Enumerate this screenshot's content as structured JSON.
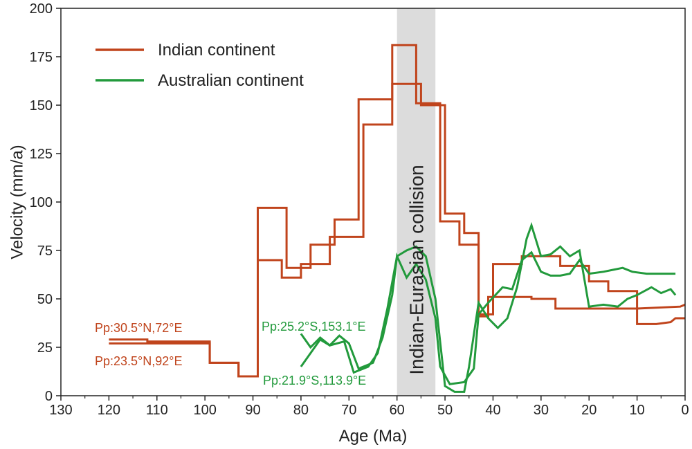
{
  "chart_data": {
    "type": "line",
    "title": "",
    "xlabel": "Age (Ma)",
    "ylabel": "Velocity (mm/a)",
    "xlim": [
      130,
      0
    ],
    "ylim": [
      0,
      200
    ],
    "x_ticks": [
      130,
      120,
      110,
      100,
      90,
      80,
      70,
      60,
      50,
      40,
      30,
      20,
      10,
      0
    ],
    "y_ticks": [
      0,
      25,
      50,
      75,
      100,
      125,
      150,
      175,
      200
    ],
    "legend_position": "top-left",
    "legend": [
      {
        "label": "Indian continent",
        "color": "#c0441c"
      },
      {
        "label": "Australian continent",
        "color": "#229a3c"
      }
    ],
    "band": {
      "x0": 60,
      "x1": 52,
      "label": "Indian-Eurasian collision",
      "color": "#dcdcdc"
    },
    "series": [
      {
        "group": "Indian continent",
        "color": "#c0441c",
        "annotation": "Pp:30.5°N,72°E",
        "points": [
          [
            120,
            29
          ],
          [
            112,
            29
          ],
          [
            112,
            28
          ],
          [
            99,
            28
          ],
          [
            99,
            17
          ],
          [
            93,
            17
          ],
          [
            93,
            10
          ],
          [
            89,
            10
          ],
          [
            89,
            97
          ],
          [
            83,
            97
          ],
          [
            83,
            66
          ],
          [
            78,
            66
          ],
          [
            78,
            78
          ],
          [
            73,
            78
          ],
          [
            73,
            91
          ],
          [
            68,
            91
          ],
          [
            68,
            153
          ],
          [
            61,
            153
          ],
          [
            61,
            161
          ],
          [
            55,
            161
          ],
          [
            55,
            150
          ],
          [
            50,
            150
          ],
          [
            50,
            94
          ],
          [
            46,
            94
          ],
          [
            46,
            84
          ],
          [
            43,
            84
          ],
          [
            43,
            41
          ],
          [
            41,
            41
          ],
          [
            41,
            51
          ],
          [
            32,
            51
          ],
          [
            32,
            50
          ],
          [
            27,
            50
          ],
          [
            27,
            45
          ],
          [
            10,
            45
          ],
          [
            10,
            45
          ],
          [
            1,
            46
          ],
          [
            0,
            47
          ]
        ]
      },
      {
        "group": "Indian continent",
        "color": "#c0441c",
        "annotation": "Pp:23.5°N,92°E",
        "points": [
          [
            120,
            27
          ],
          [
            99,
            27
          ],
          [
            99,
            17
          ],
          [
            93,
            17
          ],
          [
            93,
            10
          ],
          [
            89,
            10
          ],
          [
            89,
            70
          ],
          [
            84,
            70
          ],
          [
            84,
            61
          ],
          [
            80,
            61
          ],
          [
            80,
            68
          ],
          [
            74,
            68
          ],
          [
            74,
            82
          ],
          [
            67,
            82
          ],
          [
            67,
            140
          ],
          [
            61,
            140
          ],
          [
            61,
            181
          ],
          [
            56,
            181
          ],
          [
            56,
            151
          ],
          [
            51,
            151
          ],
          [
            51,
            90
          ],
          [
            47,
            90
          ],
          [
            47,
            78
          ],
          [
            43,
            78
          ],
          [
            43,
            42
          ],
          [
            40,
            42
          ],
          [
            40,
            68
          ],
          [
            34,
            68
          ],
          [
            34,
            72
          ],
          [
            26,
            72
          ],
          [
            26,
            67
          ],
          [
            20,
            67
          ],
          [
            20,
            59
          ],
          [
            16,
            59
          ],
          [
            16,
            54
          ],
          [
            10,
            54
          ],
          [
            10,
            37
          ],
          [
            6,
            37
          ],
          [
            3,
            38
          ],
          [
            2,
            40
          ],
          [
            0,
            40
          ]
        ]
      },
      {
        "group": "Australian continent",
        "color": "#229a3c",
        "annotation": "Pp:25.2°S,153.1°E",
        "points": [
          [
            80,
            32
          ],
          [
            78,
            25
          ],
          [
            76,
            30
          ],
          [
            74,
            26
          ],
          [
            72,
            31
          ],
          [
            70,
            27
          ],
          [
            68,
            14
          ],
          [
            65,
            17
          ],
          [
            63,
            30
          ],
          [
            61,
            52
          ],
          [
            60,
            72
          ],
          [
            58,
            61
          ],
          [
            56,
            68
          ],
          [
            54,
            60
          ],
          [
            52,
            40
          ],
          [
            51,
            15
          ],
          [
            49,
            6
          ],
          [
            46,
            7
          ],
          [
            44,
            14
          ],
          [
            43,
            42
          ],
          [
            41,
            48
          ],
          [
            38,
            56
          ],
          [
            36,
            55
          ],
          [
            34,
            70
          ],
          [
            32,
            74
          ],
          [
            30,
            64
          ],
          [
            28,
            62
          ],
          [
            26,
            62
          ],
          [
            24,
            63
          ],
          [
            22,
            70
          ],
          [
            20,
            63
          ],
          [
            17,
            64
          ],
          [
            15,
            65
          ],
          [
            13,
            66
          ],
          [
            11,
            64
          ],
          [
            8,
            63
          ],
          [
            6,
            63
          ],
          [
            2,
            63
          ]
        ]
      },
      {
        "group": "Australian continent",
        "color": "#229a3c",
        "annotation": "Pp:21.9°S,113.9°E",
        "points": [
          [
            80,
            15
          ],
          [
            76,
            29
          ],
          [
            74,
            26
          ],
          [
            71,
            28
          ],
          [
            69,
            12
          ],
          [
            66,
            15
          ],
          [
            64,
            22
          ],
          [
            62,
            45
          ],
          [
            60,
            72
          ],
          [
            58,
            75
          ],
          [
            56,
            77
          ],
          [
            54,
            72
          ],
          [
            52,
            50
          ],
          [
            50,
            5
          ],
          [
            48,
            2
          ],
          [
            46,
            2
          ],
          [
            45,
            15
          ],
          [
            43,
            48
          ],
          [
            41,
            40
          ],
          [
            39,
            35
          ],
          [
            37,
            40
          ],
          [
            35,
            56
          ],
          [
            33,
            81
          ],
          [
            32,
            88
          ],
          [
            30,
            72
          ],
          [
            28,
            73
          ],
          [
            26,
            77
          ],
          [
            24,
            72
          ],
          [
            22,
            75
          ],
          [
            20,
            46
          ],
          [
            17,
            47
          ],
          [
            14,
            46
          ],
          [
            12,
            50
          ],
          [
            10,
            52
          ],
          [
            7,
            56
          ],
          [
            5,
            53
          ],
          [
            3,
            55
          ],
          [
            2,
            52
          ]
        ]
      }
    ]
  }
}
